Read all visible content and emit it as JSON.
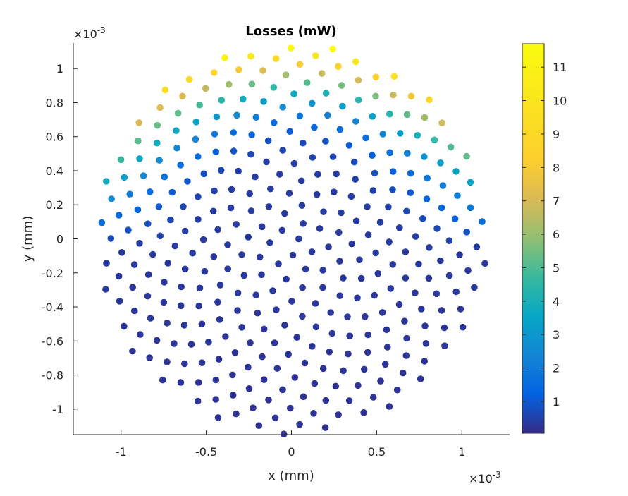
{
  "chart_data": {
    "type": "scatter",
    "title": "Losses (mW)",
    "xlabel": "x (mm)",
    "ylabel": "y (mm)",
    "x_exponent": {
      "base": "×10",
      "power": "-3"
    },
    "y_exponent": {
      "base": "×10",
      "power": "-3"
    },
    "xlim": [
      -1.28,
      1.28
    ],
    "ylim": [
      -1.15,
      1.15
    ],
    "x_ticks": [
      -1,
      -0.5,
      0,
      0.5,
      1
    ],
    "x_tick_labels": [
      "-1",
      "-0.5",
      "0",
      "0.5",
      "1"
    ],
    "y_ticks": [
      -1,
      -0.8,
      -0.6,
      -0.4,
      -0.2,
      0,
      0.2,
      0.4,
      0.6,
      0.8,
      1
    ],
    "y_tick_labels": [
      "-1",
      "-0.8",
      "-0.6",
      "-0.4",
      "-0.2",
      "0",
      "0.2",
      "0.4",
      "0.6",
      "0.8",
      "1"
    ],
    "colorbar": {
      "colormap": "parula",
      "limits": [
        0.05,
        11.7
      ],
      "ticks": [
        1,
        2,
        3,
        4,
        5,
        6,
        7,
        8,
        9,
        10,
        11
      ],
      "tick_labels": [
        "1",
        "2",
        "3",
        "4",
        "5",
        "6",
        "7",
        "8",
        "9",
        "10",
        "11"
      ],
      "location": "right"
    },
    "grid": false,
    "points": {
      "count": 360,
      "layout": "sunflower (Fermat spiral) arrangement inside a circle of radius 1.15e-3 mm",
      "value_trend": "losses near 0.2 mW at the bottom of the disk, rising toward the top edge to a maximum of about 11.7 mW"
    }
  }
}
